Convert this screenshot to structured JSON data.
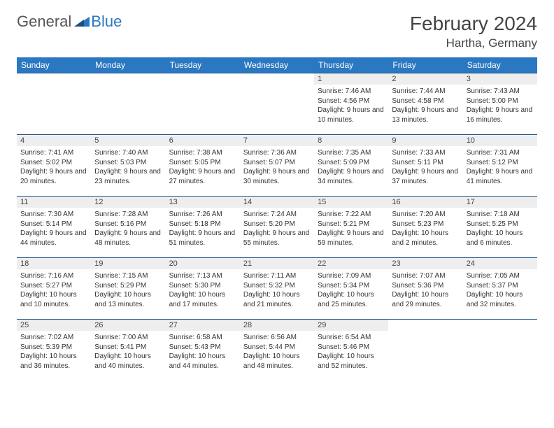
{
  "logo": {
    "text_general": "General",
    "text_blue": "Blue"
  },
  "title": "February 2024",
  "location": "Hartha, Germany",
  "colors": {
    "header_bg": "#2b78c2",
    "header_text": "#ffffff",
    "daynum_bg": "#eeeeee",
    "border": "#1a4f85",
    "logo_gray": "#555555",
    "logo_blue": "#2b78c2"
  },
  "weekdays": [
    "Sunday",
    "Monday",
    "Tuesday",
    "Wednesday",
    "Thursday",
    "Friday",
    "Saturday"
  ],
  "weeks": [
    [
      null,
      null,
      null,
      null,
      {
        "n": "1",
        "sunrise": "7:46 AM",
        "sunset": "4:56 PM",
        "daylight": "9 hours and 10 minutes."
      },
      {
        "n": "2",
        "sunrise": "7:44 AM",
        "sunset": "4:58 PM",
        "daylight": "9 hours and 13 minutes."
      },
      {
        "n": "3",
        "sunrise": "7:43 AM",
        "sunset": "5:00 PM",
        "daylight": "9 hours and 16 minutes."
      }
    ],
    [
      {
        "n": "4",
        "sunrise": "7:41 AM",
        "sunset": "5:02 PM",
        "daylight": "9 hours and 20 minutes."
      },
      {
        "n": "5",
        "sunrise": "7:40 AM",
        "sunset": "5:03 PM",
        "daylight": "9 hours and 23 minutes."
      },
      {
        "n": "6",
        "sunrise": "7:38 AM",
        "sunset": "5:05 PM",
        "daylight": "9 hours and 27 minutes."
      },
      {
        "n": "7",
        "sunrise": "7:36 AM",
        "sunset": "5:07 PM",
        "daylight": "9 hours and 30 minutes."
      },
      {
        "n": "8",
        "sunrise": "7:35 AM",
        "sunset": "5:09 PM",
        "daylight": "9 hours and 34 minutes."
      },
      {
        "n": "9",
        "sunrise": "7:33 AM",
        "sunset": "5:11 PM",
        "daylight": "9 hours and 37 minutes."
      },
      {
        "n": "10",
        "sunrise": "7:31 AM",
        "sunset": "5:12 PM",
        "daylight": "9 hours and 41 minutes."
      }
    ],
    [
      {
        "n": "11",
        "sunrise": "7:30 AM",
        "sunset": "5:14 PM",
        "daylight": "9 hours and 44 minutes."
      },
      {
        "n": "12",
        "sunrise": "7:28 AM",
        "sunset": "5:16 PM",
        "daylight": "9 hours and 48 minutes."
      },
      {
        "n": "13",
        "sunrise": "7:26 AM",
        "sunset": "5:18 PM",
        "daylight": "9 hours and 51 minutes."
      },
      {
        "n": "14",
        "sunrise": "7:24 AM",
        "sunset": "5:20 PM",
        "daylight": "9 hours and 55 minutes."
      },
      {
        "n": "15",
        "sunrise": "7:22 AM",
        "sunset": "5:21 PM",
        "daylight": "9 hours and 59 minutes."
      },
      {
        "n": "16",
        "sunrise": "7:20 AM",
        "sunset": "5:23 PM",
        "daylight": "10 hours and 2 minutes."
      },
      {
        "n": "17",
        "sunrise": "7:18 AM",
        "sunset": "5:25 PM",
        "daylight": "10 hours and 6 minutes."
      }
    ],
    [
      {
        "n": "18",
        "sunrise": "7:16 AM",
        "sunset": "5:27 PM",
        "daylight": "10 hours and 10 minutes."
      },
      {
        "n": "19",
        "sunrise": "7:15 AM",
        "sunset": "5:29 PM",
        "daylight": "10 hours and 13 minutes."
      },
      {
        "n": "20",
        "sunrise": "7:13 AM",
        "sunset": "5:30 PM",
        "daylight": "10 hours and 17 minutes."
      },
      {
        "n": "21",
        "sunrise": "7:11 AM",
        "sunset": "5:32 PM",
        "daylight": "10 hours and 21 minutes."
      },
      {
        "n": "22",
        "sunrise": "7:09 AM",
        "sunset": "5:34 PM",
        "daylight": "10 hours and 25 minutes."
      },
      {
        "n": "23",
        "sunrise": "7:07 AM",
        "sunset": "5:36 PM",
        "daylight": "10 hours and 29 minutes."
      },
      {
        "n": "24",
        "sunrise": "7:05 AM",
        "sunset": "5:37 PM",
        "daylight": "10 hours and 32 minutes."
      }
    ],
    [
      {
        "n": "25",
        "sunrise": "7:02 AM",
        "sunset": "5:39 PM",
        "daylight": "10 hours and 36 minutes."
      },
      {
        "n": "26",
        "sunrise": "7:00 AM",
        "sunset": "5:41 PM",
        "daylight": "10 hours and 40 minutes."
      },
      {
        "n": "27",
        "sunrise": "6:58 AM",
        "sunset": "5:43 PM",
        "daylight": "10 hours and 44 minutes."
      },
      {
        "n": "28",
        "sunrise": "6:56 AM",
        "sunset": "5:44 PM",
        "daylight": "10 hours and 48 minutes."
      },
      {
        "n": "29",
        "sunrise": "6:54 AM",
        "sunset": "5:46 PM",
        "daylight": "10 hours and 52 minutes."
      },
      null,
      null
    ]
  ],
  "labels": {
    "sunrise": "Sunrise:",
    "sunset": "Sunset:",
    "daylight": "Daylight:"
  }
}
